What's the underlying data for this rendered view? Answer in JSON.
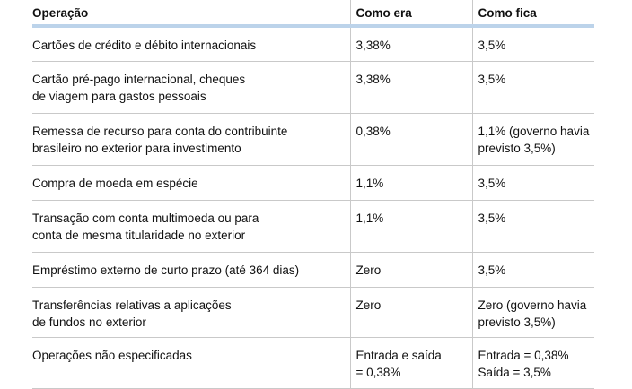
{
  "table": {
    "headers": [
      "Operação",
      "Como era",
      "Como fica"
    ],
    "rows": [
      {
        "operacao": "Cartões de crédito e débito internacionais",
        "como_era": "3,38%",
        "como_fica": "3,5%"
      },
      {
        "operacao": "Cartão pré-pago internacional, cheques\nde viagem para gastos pessoais",
        "como_era": "3,38%",
        "como_fica": "3,5%"
      },
      {
        "operacao": "Remessa de recurso para conta do contribuinte\nbrasileiro no exterior para investimento",
        "como_era": "0,38%",
        "como_fica": "1,1% (governo havia\nprevisto 3,5%)"
      },
      {
        "operacao": "Compra de moeda em espécie",
        "como_era": "1,1%",
        "como_fica": "3,5%"
      },
      {
        "operacao": "Transação com conta multimoeda ou para\nconta de mesma titularidade no exterior",
        "como_era": "1,1%",
        "como_fica": "3,5%"
      },
      {
        "operacao": "Empréstimo externo de curto prazo (até 364 dias)",
        "como_era": "Zero",
        "como_fica": "3,5%"
      },
      {
        "operacao": "Transferências relativas a aplicações\nde fundos no exterior",
        "como_era": "Zero",
        "como_fica": "Zero (governo havia\nprevisto 3,5%)"
      },
      {
        "operacao": "Operações não especificadas",
        "como_era": "Entrada e saída\n= 0,38%",
        "como_fica": "Entrada = 0,38%\nSaída = 3,5%"
      }
    ]
  },
  "colors": {
    "header_rule": "#bcd3ea",
    "row_rule": "#c9c9c9",
    "text": "#111111"
  }
}
